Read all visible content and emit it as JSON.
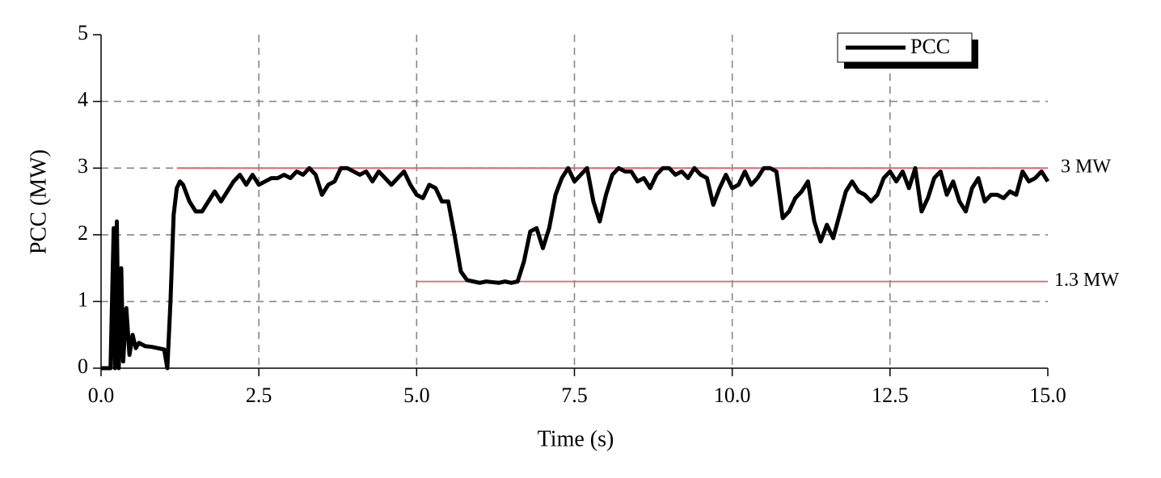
{
  "chart_data": {
    "type": "line",
    "x_label": "Time (s)",
    "y_label": "PCC (MW)",
    "x": [
      0,
      0.1,
      0.15,
      0.2,
      0.22,
      0.25,
      0.28,
      0.32,
      0.35,
      0.4,
      0.45,
      0.5,
      0.55,
      0.6,
      0.7,
      0.8,
      0.9,
      1.0,
      1.05,
      1.1,
      1.15,
      1.2,
      1.25,
      1.3,
      1.4,
      1.5,
      1.6,
      1.7,
      1.8,
      1.9,
      2.0,
      2.1,
      2.2,
      2.3,
      2.4,
      2.5,
      2.6,
      2.7,
      2.8,
      2.9,
      3.0,
      3.1,
      3.2,
      3.3,
      3.4,
      3.5,
      3.6,
      3.7,
      3.8,
      3.9,
      4.0,
      4.1,
      4.2,
      4.3,
      4.4,
      4.5,
      4.6,
      4.7,
      4.8,
      4.9,
      5.0,
      5.1,
      5.2,
      5.3,
      5.4,
      5.5,
      5.6,
      5.7,
      5.8,
      5.9,
      6.0,
      6.1,
      6.2,
      6.3,
      6.4,
      6.5,
      6.6,
      6.7,
      6.8,
      6.9,
      7.0,
      7.1,
      7.2,
      7.3,
      7.4,
      7.5,
      7.6,
      7.7,
      7.8,
      7.9,
      8.0,
      8.1,
      8.2,
      8.3,
      8.4,
      8.5,
      8.6,
      8.7,
      8.8,
      8.9,
      9.0,
      9.1,
      9.2,
      9.3,
      9.4,
      9.5,
      9.6,
      9.7,
      9.8,
      9.9,
      10.0,
      10.1,
      10.2,
      10.3,
      10.4,
      10.5,
      10.6,
      10.7,
      10.8,
      10.9,
      11.0,
      11.1,
      11.2,
      11.3,
      11.4,
      11.5,
      11.6,
      11.7,
      11.8,
      11.9,
      12.0,
      12.1,
      12.2,
      12.3,
      12.4,
      12.5,
      12.6,
      12.7,
      12.8,
      12.9,
      13.0,
      13.1,
      13.2,
      13.3,
      13.4,
      13.5,
      13.6,
      13.7,
      13.8,
      13.9,
      14.0,
      14.1,
      14.2,
      14.3,
      14.4,
      14.5,
      14.6,
      14.7,
      14.8,
      14.9,
      15.0
    ],
    "series": [
      {
        "name": "PCC",
        "color": "#000000",
        "values": [
          0,
          0,
          0,
          2.1,
          0,
          2.2,
          0,
          1.5,
          0.1,
          0.9,
          0.2,
          0.5,
          0.3,
          0.38,
          0.33,
          0.32,
          0.3,
          0.28,
          0,
          1.0,
          2.3,
          2.7,
          2.8,
          2.75,
          2.5,
          2.35,
          2.35,
          2.5,
          2.65,
          2.5,
          2.65,
          2.8,
          2.9,
          2.75,
          2.9,
          2.75,
          2.8,
          2.85,
          2.85,
          2.9,
          2.85,
          2.95,
          2.9,
          3.0,
          2.9,
          2.6,
          2.75,
          2.8,
          3.0,
          3.0,
          2.95,
          2.9,
          2.95,
          2.8,
          2.95,
          2.85,
          2.75,
          2.85,
          2.95,
          2.75,
          2.6,
          2.55,
          2.75,
          2.7,
          2.5,
          2.5,
          2.0,
          1.45,
          1.32,
          1.3,
          1.28,
          1.3,
          1.29,
          1.28,
          1.3,
          1.28,
          1.3,
          1.6,
          2.05,
          2.1,
          1.8,
          2.1,
          2.6,
          2.85,
          3.0,
          2.8,
          2.9,
          3.0,
          2.5,
          2.2,
          2.6,
          2.9,
          3.0,
          2.95,
          2.95,
          2.8,
          2.85,
          2.7,
          2.9,
          3.0,
          3.0,
          2.9,
          2.95,
          2.85,
          3.0,
          2.9,
          2.85,
          2.45,
          2.7,
          2.9,
          2.7,
          2.75,
          2.95,
          2.75,
          2.85,
          3.0,
          3.0,
          2.95,
          2.25,
          2.35,
          2.55,
          2.65,
          2.8,
          2.2,
          1.9,
          2.15,
          1.95,
          2.3,
          2.65,
          2.8,
          2.65,
          2.6,
          2.5,
          2.6,
          2.85,
          2.95,
          2.8,
          2.95,
          2.7,
          3.0,
          2.35,
          2.55,
          2.85,
          2.95,
          2.6,
          2.8,
          2.5,
          2.35,
          2.7,
          2.85,
          2.5,
          2.6,
          2.6,
          2.55,
          2.65,
          2.6,
          2.95,
          2.8,
          2.85,
          2.95,
          2.8
        ]
      }
    ],
    "reference_lines": [
      {
        "value": 3,
        "label": "3 MW",
        "x_start": 1.2,
        "color": "#d9656b"
      },
      {
        "value": 1.3,
        "label": "1.3 MW",
        "x_start": 5.0,
        "color": "#d9656b"
      }
    ],
    "xlim": [
      0,
      15
    ],
    "xticks": [
      {
        "value": 0,
        "label": "0.0"
      },
      2.5,
      {
        "value": 5,
        "label": "5.0"
      },
      7.5,
      {
        "value": 10,
        "label": "10.0"
      },
      12.5,
      {
        "value": 15,
        "label": "15.0"
      }
    ],
    "ylim": [
      0,
      5
    ],
    "yticks": [
      0,
      1,
      2,
      3,
      4,
      5
    ],
    "grid": true,
    "legend": "top-right"
  }
}
